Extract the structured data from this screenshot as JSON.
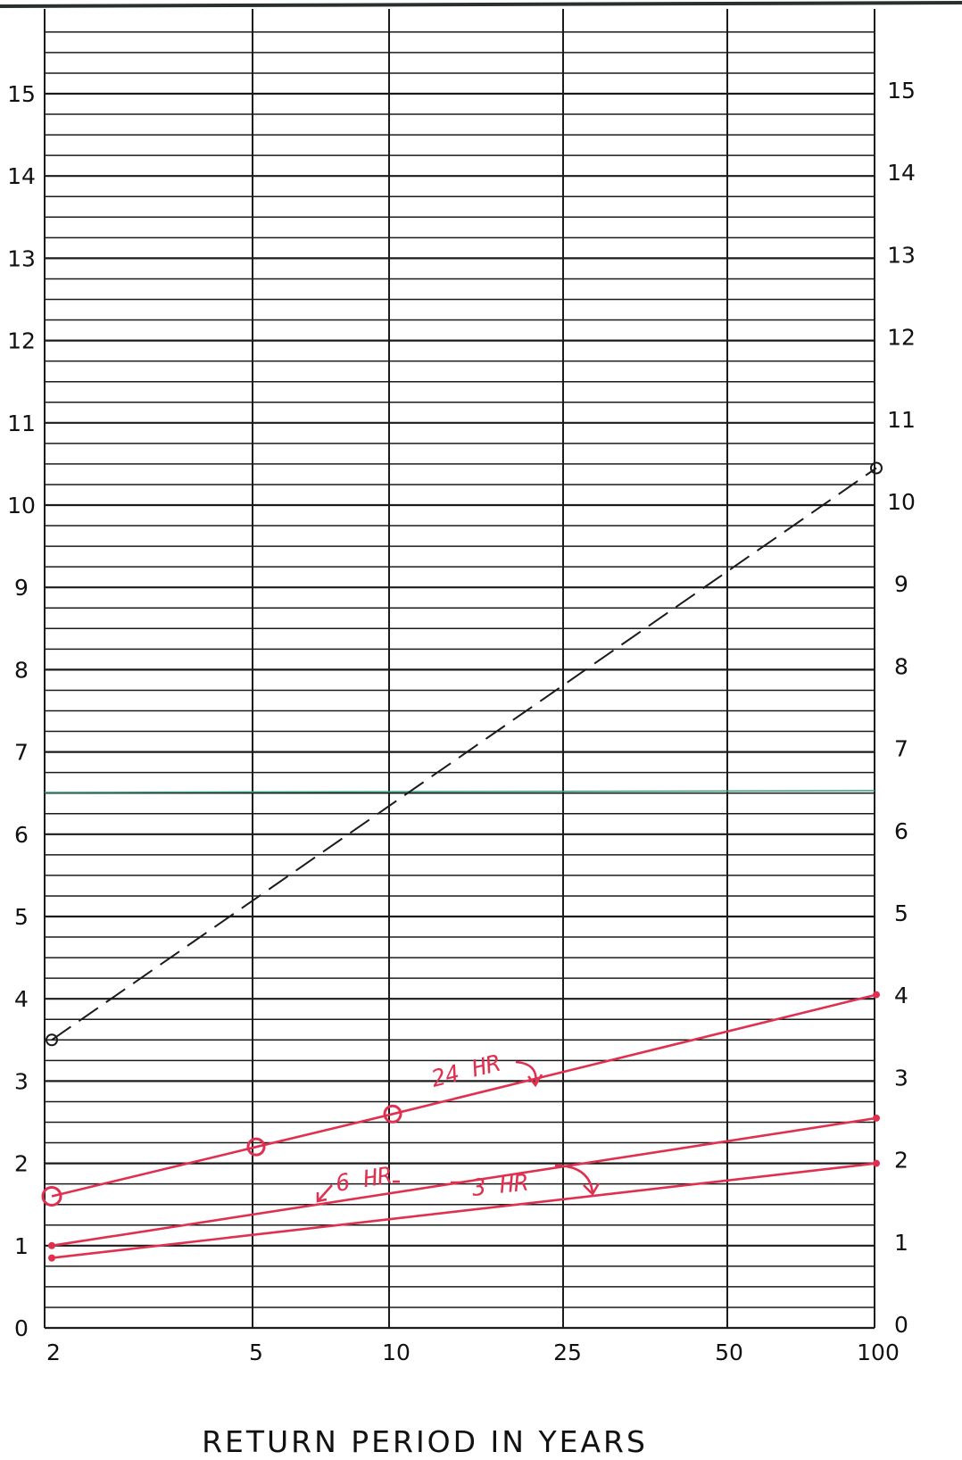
{
  "chart_data": {
    "type": "line",
    "title": "",
    "xlabel": "RETURN PERIOD IN YEARS",
    "ylabel": "",
    "x_scale": "probability (return period)",
    "x_ticks": [
      "2",
      "5",
      "10",
      "25",
      "50",
      "100"
    ],
    "y_ticks": [
      "0",
      "1",
      "2",
      "3",
      "4",
      "5",
      "6",
      "7",
      "8",
      "9",
      "10",
      "11",
      "12",
      "13",
      "14",
      "15"
    ],
    "ylim": [
      0,
      16
    ],
    "grid": true,
    "series": [
      {
        "name": "",
        "color": "#1a1a1a",
        "style": "dashed",
        "markers": "open-circle",
        "points": [
          {
            "x": 2,
            "y": 3.5
          },
          {
            "x": 100,
            "y": 10.45
          }
        ]
      },
      {
        "name": "24 HR",
        "color": "#e0304f",
        "style": "solid",
        "points": [
          {
            "x": 2,
            "y": 1.6
          },
          {
            "x": 5,
            "y": 2.2
          },
          {
            "x": 10,
            "y": 2.6
          },
          {
            "x": 100,
            "y": 4.05
          }
        ]
      },
      {
        "name": "6 HR",
        "color": "#e0304f",
        "style": "solid",
        "points": [
          {
            "x": 2,
            "y": 1.0
          },
          {
            "x": 100,
            "y": 2.55
          }
        ]
      },
      {
        "name": "3 HR",
        "color": "#e0304f",
        "style": "solid",
        "points": [
          {
            "x": 2,
            "y": 0.85
          },
          {
            "x": 100,
            "y": 2.0
          }
        ]
      }
    ],
    "annotations": [
      "24 HR",
      "6 HR",
      "3 HR"
    ]
  }
}
